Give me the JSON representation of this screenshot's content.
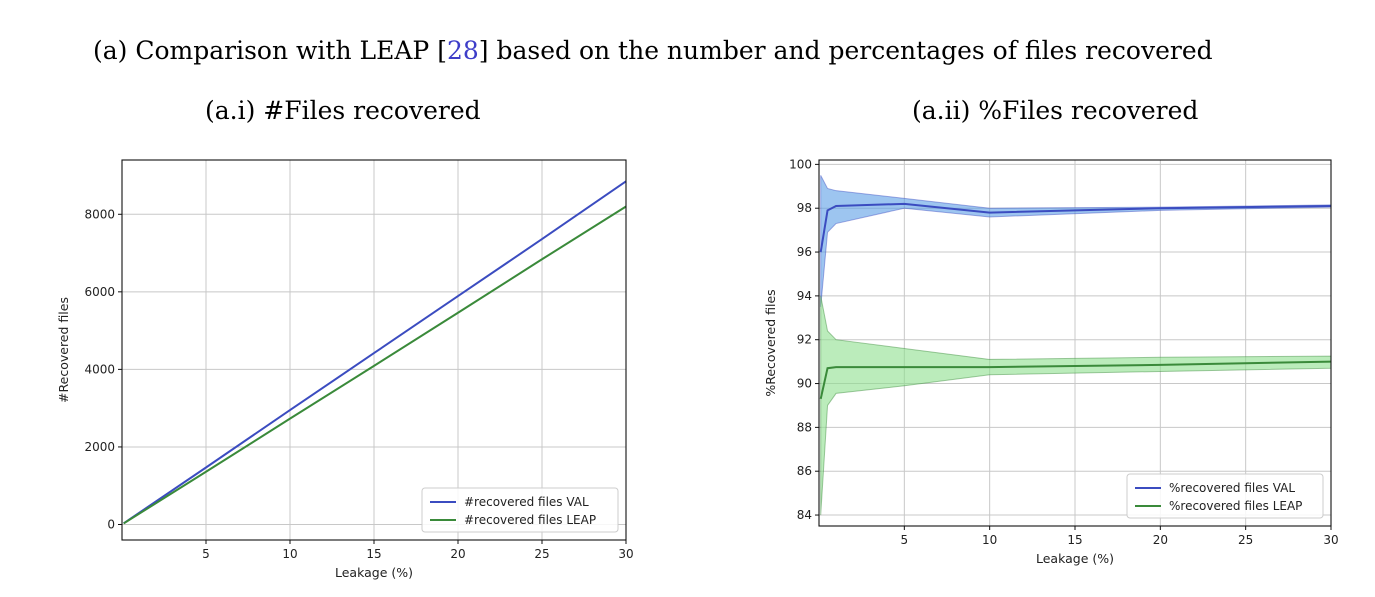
{
  "caption": {
    "prefix": "(a) Comparison with LEAP [",
    "ref": "28",
    "suffix": "] based on the number and percentages of files recovered"
  },
  "colors": {
    "val_line": "#3b4cc0",
    "val_band": "#5b9ee6",
    "leap_line": "#3a8a3a",
    "leap_band": "#8ddf8d",
    "grid": "#c8c8c8"
  },
  "chart_data": [
    {
      "type": "line",
      "subtitle": "(a.i) #Files recovered",
      "xlabel": "Leakage (%)",
      "ylabel": "#Recovered files",
      "xlim": [
        0,
        30
      ],
      "ylim": [
        -400,
        9400
      ],
      "xticks": [
        5,
        10,
        15,
        20,
        25,
        30
      ],
      "yticks": [
        0,
        2000,
        4000,
        6000,
        8000
      ],
      "grid": true,
      "legend_position": "lower-right",
      "series": [
        {
          "name": "#recovered files VAL",
          "color": "#3b4cc0",
          "x": [
            0.1,
            5,
            10,
            15,
            20,
            25,
            30
          ],
          "y": [
            30,
            1470,
            2950,
            4420,
            5890,
            7360,
            8850
          ]
        },
        {
          "name": "#recovered files LEAP",
          "color": "#3a8a3a",
          "x": [
            0.1,
            5,
            10,
            15,
            20,
            25,
            30
          ],
          "y": [
            27,
            1360,
            2730,
            4090,
            5460,
            6840,
            8200
          ]
        }
      ]
    },
    {
      "type": "line",
      "subtitle": "(a.ii) %Files recovered",
      "xlabel": "Leakage (%)",
      "ylabel": "%Recovered files",
      "xlim": [
        0,
        30
      ],
      "ylim": [
        83.5,
        100.2
      ],
      "xticks": [
        5,
        10,
        15,
        20,
        25,
        30
      ],
      "yticks": [
        84,
        86,
        88,
        90,
        92,
        94,
        96,
        98,
        100
      ],
      "grid": true,
      "legend_position": "lower-right",
      "series": [
        {
          "name": "%recovered files VAL",
          "color": "#3b4cc0",
          "band_color": "#5b9ee6",
          "x": [
            0.1,
            0.5,
            1,
            5,
            10,
            20,
            30
          ],
          "y": [
            96.0,
            97.9,
            98.1,
            98.2,
            97.8,
            98.0,
            98.1
          ],
          "y_low": [
            93.5,
            96.9,
            97.3,
            98.0,
            97.6,
            97.9,
            98.05
          ],
          "y_high": [
            99.5,
            98.9,
            98.8,
            98.45,
            98.0,
            98.05,
            98.15
          ]
        },
        {
          "name": "%recovered files LEAP",
          "color": "#3a8a3a",
          "band_color": "#8ddf8d",
          "x": [
            0.1,
            0.5,
            1,
            5,
            10,
            20,
            30
          ],
          "y": [
            89.3,
            90.7,
            90.75,
            90.75,
            90.75,
            90.85,
            91.0
          ],
          "y_low": [
            84.0,
            89.0,
            89.55,
            89.9,
            90.4,
            90.55,
            90.7
          ],
          "y_high": [
            94.0,
            92.4,
            92.0,
            91.6,
            91.1,
            91.2,
            91.25
          ]
        }
      ]
    }
  ]
}
